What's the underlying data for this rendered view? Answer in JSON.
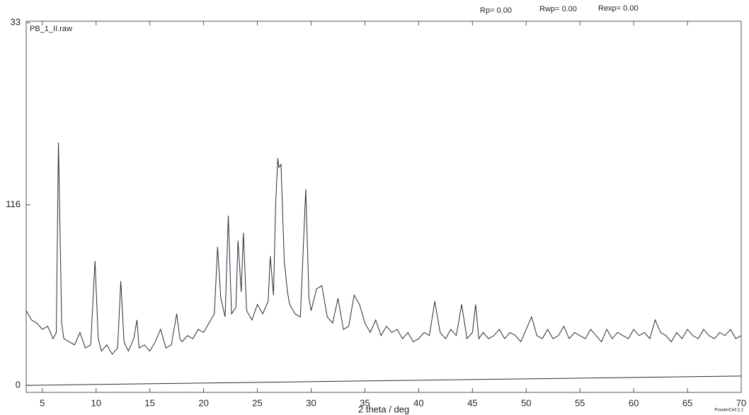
{
  "chart_data": {
    "type": "line",
    "title": "PB_1_II.raw",
    "annotations": [
      "Rp= 0.00",
      "Rwp= 0.00",
      "Rexp= 0.00",
      "PowderCell 2.2"
    ],
    "x_label": "2 theta / deg",
    "xlim": [
      3.5,
      70
    ],
    "ylim": [
      -4.5,
      234
    ],
    "xticks": [
      5,
      10,
      15,
      20,
      25,
      30,
      35,
      40,
      45,
      50,
      55,
      60,
      65,
      70
    ],
    "yticks": [
      0,
      116,
      {
        "value": 233,
        "label": "33"
      }
    ],
    "series": [
      {
        "color": "#2a2a3a",
        "x": [
          3.5,
          4,
          4.5,
          5,
          5.5,
          6,
          6.3,
          6.5,
          6.8,
          7,
          7.5,
          8,
          8.5,
          9,
          9.5,
          9.9,
          10.2,
          10.5,
          11,
          11.5,
          12,
          12.3,
          12.6,
          13,
          13.5,
          13.8,
          14,
          14.5,
          15,
          15.5,
          16,
          16.5,
          17,
          17.5,
          17.8,
          18,
          18.5,
          19,
          19.5,
          20,
          20.5,
          21,
          21.3,
          21.6,
          22,
          22.3,
          22.6,
          23,
          23.2,
          23.5,
          23.7,
          24,
          24.5,
          25,
          25.5,
          26,
          26.2,
          26.5,
          26.7,
          26.9,
          27,
          27.2,
          27.5,
          27.8,
          28,
          28.5,
          29,
          29.5,
          29.8,
          30,
          30.5,
          31,
          31.5,
          32,
          32.5,
          33,
          33.5,
          34,
          34.5,
          35,
          35.5,
          36,
          36.5,
          37,
          37.5,
          38,
          38.5,
          39,
          39.5,
          40,
          40.5,
          41,
          41.5,
          42,
          42.5,
          43,
          43.5,
          44,
          44.5,
          45,
          45.3,
          45.6,
          46,
          46.5,
          47,
          47.5,
          48,
          48.5,
          49,
          49.5,
          50,
          50.5,
          51,
          51.5,
          52,
          52.5,
          53,
          53.5,
          54,
          54.5,
          55,
          55.5,
          56,
          56.5,
          57,
          57.5,
          58,
          58.5,
          59,
          59.5,
          60,
          60.5,
          61,
          61.5,
          62,
          62.5,
          63,
          63.5,
          64,
          64.5,
          65,
          65.5,
          66,
          66.5,
          67,
          67.5,
          68,
          68.5,
          69,
          69.5,
          70
        ],
        "values": [
          48,
          42,
          40,
          36,
          38,
          30,
          34,
          156,
          40,
          30,
          28,
          26,
          34,
          24,
          26,
          80,
          30,
          22,
          26,
          20,
          24,
          67,
          28,
          22,
          30,
          42,
          24,
          26,
          22,
          28,
          36,
          24,
          26,
          46,
          30,
          28,
          32,
          30,
          36,
          34,
          40,
          46,
          89,
          56,
          44,
          109,
          46,
          50,
          93,
          60,
          98,
          48,
          42,
          52,
          46,
          54,
          83,
          58,
          116,
          146,
          140,
          142,
          80,
          60,
          52,
          46,
          44,
          126,
          56,
          48,
          62,
          64,
          44,
          40,
          56,
          36,
          38,
          58,
          52,
          40,
          34,
          42,
          32,
          38,
          34,
          36,
          30,
          34,
          28,
          30,
          34,
          32,
          54,
          34,
          30,
          36,
          32,
          52,
          30,
          34,
          52,
          30,
          34,
          30,
          32,
          36,
          30,
          34,
          32,
          28,
          36,
          44,
          32,
          30,
          36,
          30,
          32,
          38,
          30,
          34,
          32,
          30,
          36,
          32,
          28,
          36,
          30,
          34,
          32,
          30,
          36,
          32,
          34,
          30,
          42,
          34,
          32,
          28,
          34,
          30,
          36,
          32,
          30,
          36,
          32,
          30,
          34,
          32,
          36,
          30,
          32
        ]
      },
      {
        "color": "#2a2a3a",
        "x": [
          3.5,
          70
        ],
        "values": [
          0,
          6
        ]
      }
    ]
  }
}
